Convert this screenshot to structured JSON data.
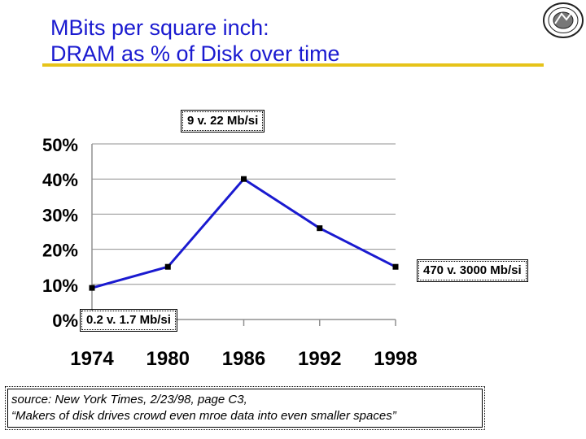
{
  "slide": {
    "title_line1": "MBits per square inch:",
    "title_line2": "DRAM as % of Disk over time",
    "accent_color": "#e6c319",
    "title_color": "#1a1ad0"
  },
  "callouts": {
    "top": "9  v. 22 Mb/si",
    "right": "470 v. 3000 Mb/si",
    "bottom": "0.2  v. 1.7 Mb/si"
  },
  "source": {
    "line1": "source: New York Times, 2/23/98, page C3,",
    "line2": "“Makers of disk drives crowd even mroe data into even smaller spaces”"
  },
  "chart_data": {
    "type": "line",
    "categories": [
      "1974",
      "1980",
      "1986",
      "1992",
      "1998"
    ],
    "series": [
      {
        "values": [
          9,
          15,
          40,
          26,
          15
        ],
        "color": "#1a1ad0"
      }
    ],
    "y_ticks": [
      "0%",
      "10%",
      "20%",
      "30%",
      "40%",
      "50%"
    ],
    "ylim": [
      0,
      50
    ],
    "grid": true
  }
}
